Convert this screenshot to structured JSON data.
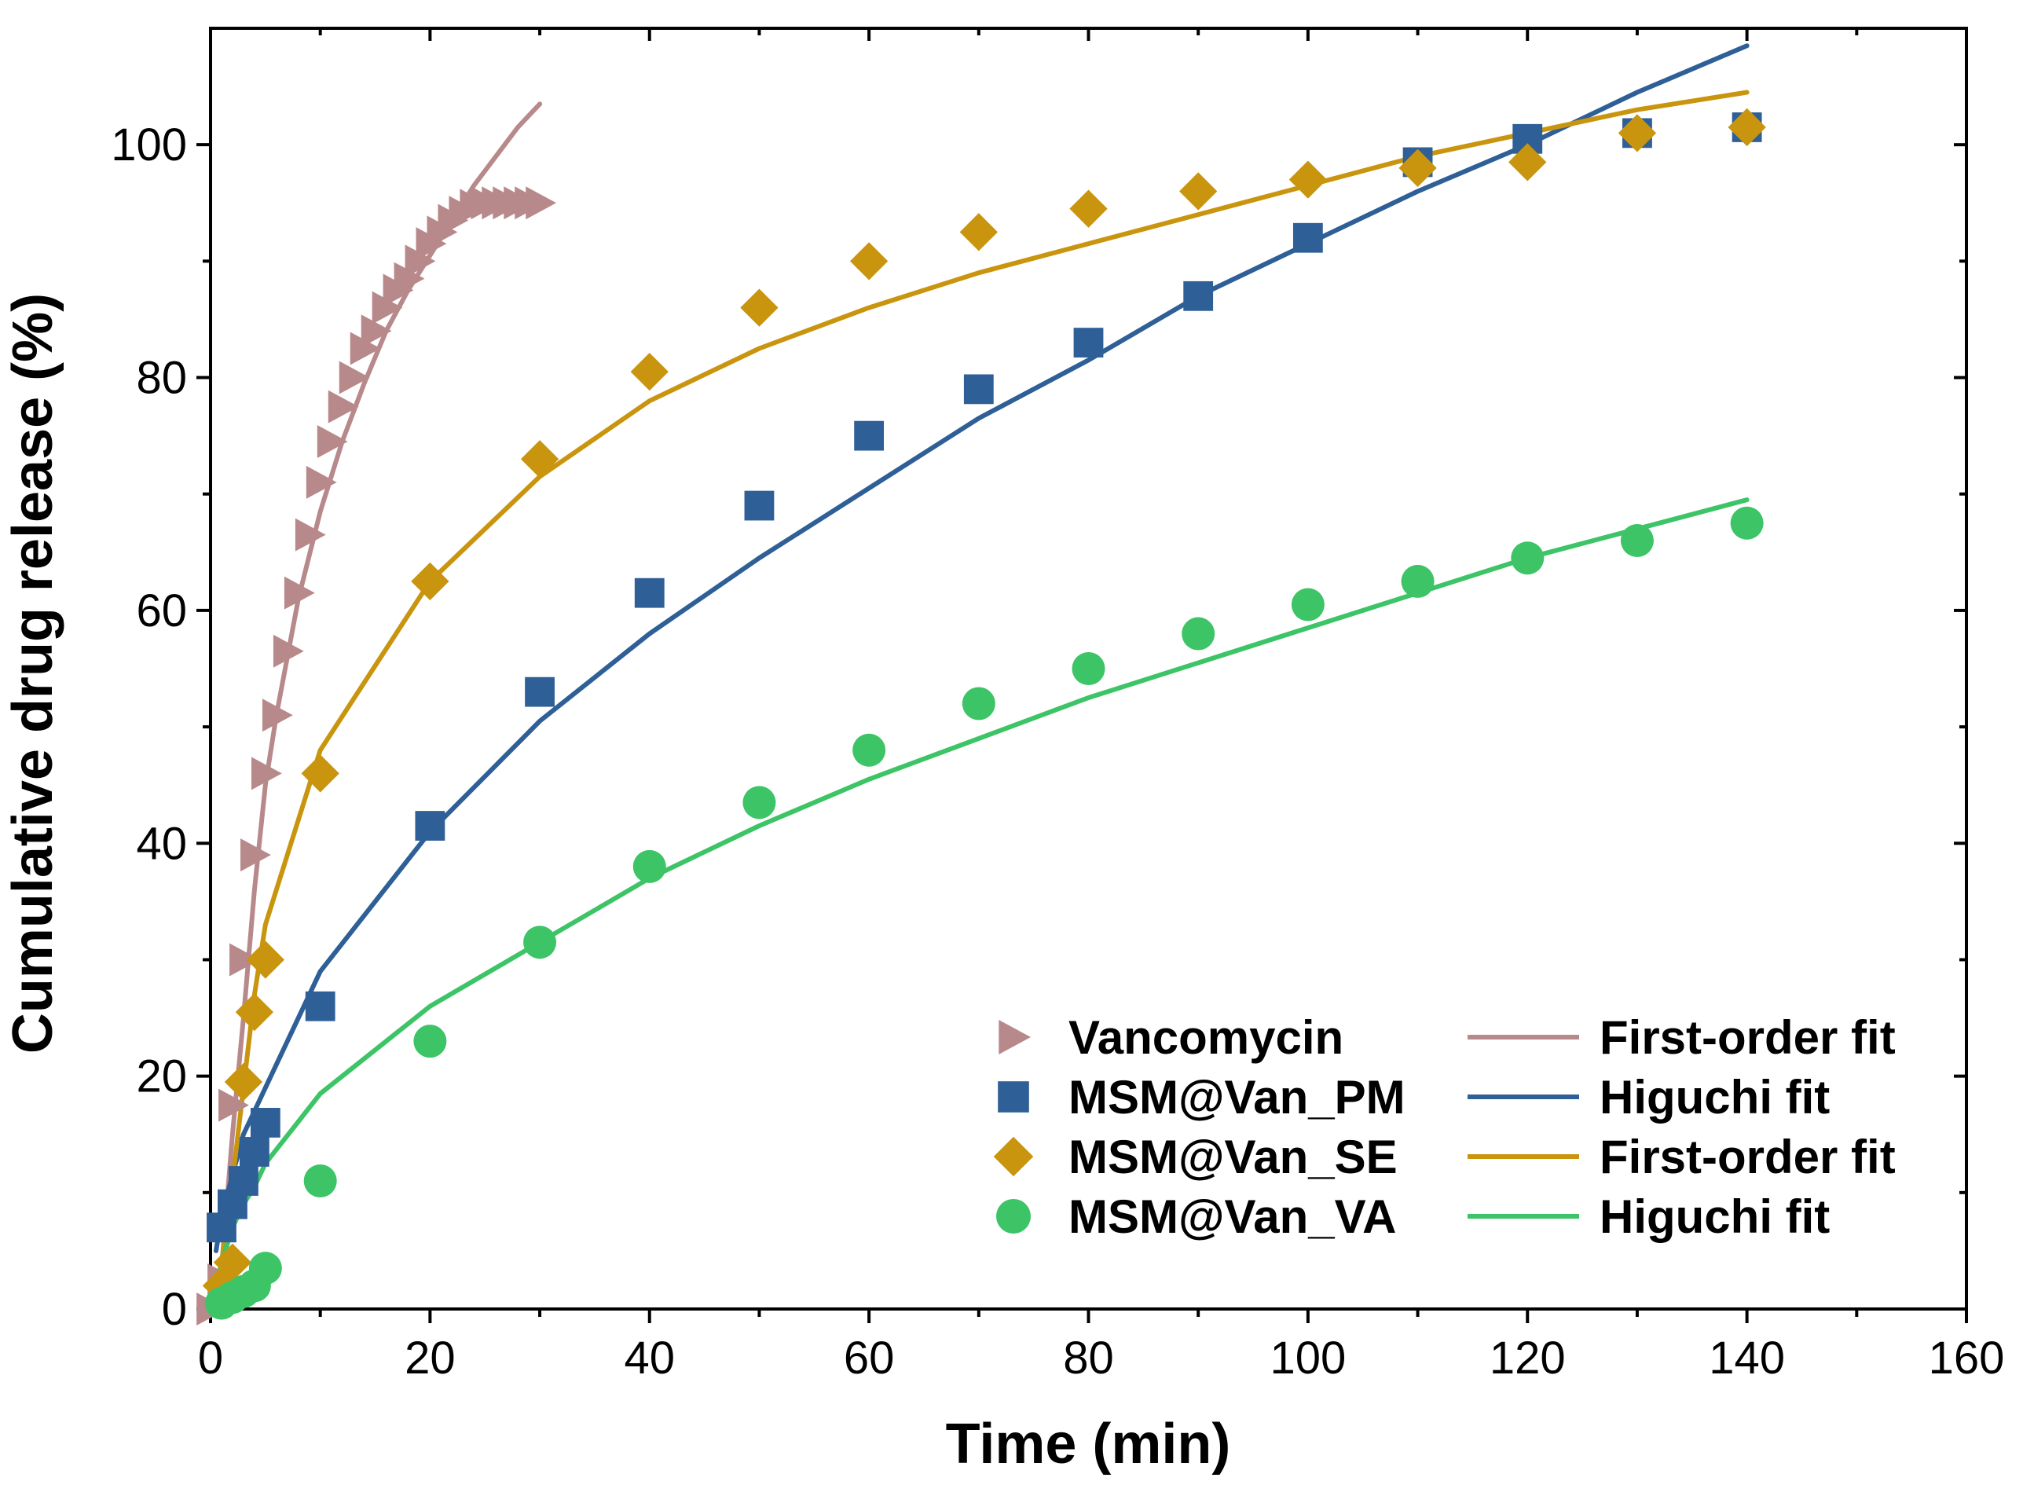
{
  "chart_data": {
    "type": "scatter",
    "title": "",
    "xlabel": "Time (min)",
    "ylabel": "Cumulative drug release (%)",
    "xlim": [
      0,
      160
    ],
    "ylim": [
      0,
      110
    ],
    "xticks": [
      0,
      20,
      40,
      60,
      80,
      100,
      120,
      140,
      160
    ],
    "yticks": [
      0,
      20,
      40,
      60,
      80,
      100
    ],
    "grid": false,
    "legend_position": "bottom-right",
    "series": [
      {
        "name": "Vancomycin",
        "kind": "markers",
        "marker": "triangle-right",
        "color": "#b8898b",
        "x": [
          0,
          1,
          2,
          3,
          4,
          5,
          6,
          7,
          8,
          9,
          10,
          11,
          12,
          13,
          14,
          15,
          16,
          17,
          18,
          19,
          20,
          21,
          22,
          23,
          24,
          25,
          26,
          27,
          28,
          29,
          30
        ],
        "y": [
          0,
          2.5,
          17.5,
          30,
          39,
          46,
          51,
          56.5,
          61.5,
          66.5,
          71,
          74.5,
          77.5,
          80,
          82.5,
          84,
          86,
          87.5,
          88.5,
          90,
          91.5,
          92.5,
          93.5,
          94.2,
          94.8,
          95,
          95,
          95,
          95,
          95,
          95
        ]
      },
      {
        "name": "MSM@Van_PM",
        "kind": "markers",
        "marker": "square",
        "color": "#2e5f96",
        "x": [
          1,
          2,
          3,
          4,
          5,
          10,
          20,
          30,
          40,
          50,
          60,
          70,
          80,
          90,
          100,
          110,
          120,
          130,
          140
        ],
        "y": [
          7,
          9,
          11,
          13.5,
          16,
          26,
          41.5,
          53,
          61.5,
          69,
          75,
          79,
          83,
          87,
          92,
          98.5,
          100.5,
          101,
          101.5
        ]
      },
      {
        "name": "MSM@Van_SE",
        "kind": "markers",
        "marker": "diamond",
        "color": "#c9950f",
        "x": [
          1,
          2,
          3,
          4,
          5,
          10,
          20,
          30,
          40,
          50,
          60,
          70,
          80,
          90,
          100,
          110,
          120,
          130,
          140
        ],
        "y": [
          2,
          4,
          19.5,
          25.5,
          30,
          46,
          62.5,
          73,
          80.5,
          86,
          90,
          92.5,
          94.5,
          96,
          97,
          98,
          98.5,
          101,
          101.5
        ]
      },
      {
        "name": "MSM@Van_VA",
        "kind": "markers",
        "marker": "circle",
        "color": "#3cc466",
        "x": [
          1,
          2,
          3,
          4,
          5,
          10,
          20,
          30,
          40,
          50,
          60,
          70,
          80,
          90,
          100,
          110,
          120,
          130,
          140
        ],
        "y": [
          0.5,
          1,
          1.5,
          2,
          3.5,
          11,
          23,
          31.5,
          38,
          43.5,
          48,
          52,
          55,
          58,
          60.5,
          62.5,
          64.5,
          66,
          67.5
        ]
      },
      {
        "name": "First-order fit",
        "kind": "line",
        "color": "#b8898b",
        "x": [
          0,
          1,
          2,
          3,
          4,
          5,
          6,
          8,
          10,
          12,
          14,
          16,
          18,
          20,
          22,
          24,
          26,
          28,
          30
        ],
        "y": [
          0,
          3.5,
          15,
          25,
          36,
          45,
          51,
          61,
          68.5,
          74.5,
          79.5,
          84,
          87.5,
          90.5,
          93.5,
          96.5,
          99,
          101.5,
          103.5
        ]
      },
      {
        "name": "Higuchi fit",
        "kind": "line",
        "color": "#2e5f96",
        "x": [
          0.5,
          1,
          2,
          3,
          4,
          5,
          10,
          20,
          30,
          40,
          50,
          60,
          70,
          80,
          90,
          100,
          110,
          120,
          130,
          140
        ],
        "y": [
          5,
          8,
          11.5,
          15,
          17,
          19,
          29,
          41,
          50.5,
          58,
          64.5,
          70.5,
          76.5,
          81.5,
          87,
          91.5,
          96,
          100,
          104.5,
          108.5
        ]
      },
      {
        "name": "First-order fit",
        "kind": "line",
        "color": "#c9950f",
        "x": [
          1,
          2,
          3,
          4,
          5,
          10,
          20,
          30,
          40,
          50,
          60,
          70,
          80,
          90,
          100,
          110,
          120,
          130,
          140
        ],
        "y": [
          4,
          11,
          19,
          27,
          33,
          48,
          62.5,
          71.5,
          78,
          82.5,
          86,
          89,
          91.5,
          94,
          96.5,
          99,
          101,
          103,
          104.5
        ]
      },
      {
        "name": "Higuchi fit",
        "kind": "line",
        "color": "#3cc466",
        "x": [
          0.5,
          1,
          2,
          3,
          4,
          5,
          10,
          20,
          30,
          40,
          50,
          60,
          70,
          80,
          90,
          100,
          110,
          120,
          130,
          140
        ],
        "y": [
          2,
          4,
          7,
          9,
          10.5,
          12.5,
          18.5,
          26,
          31.5,
          37,
          41.5,
          45.5,
          49,
          52.5,
          55.5,
          58.5,
          61.5,
          64.5,
          67,
          69.5
        ]
      }
    ],
    "legend": {
      "markers": [
        "Vancomycin",
        "MSM@Van_PM",
        "MSM@Van_SE",
        "MSM@Van_VA"
      ],
      "lines": [
        "First-order fit",
        "Higuchi fit",
        "First-order fit",
        "Higuchi fit"
      ]
    }
  }
}
